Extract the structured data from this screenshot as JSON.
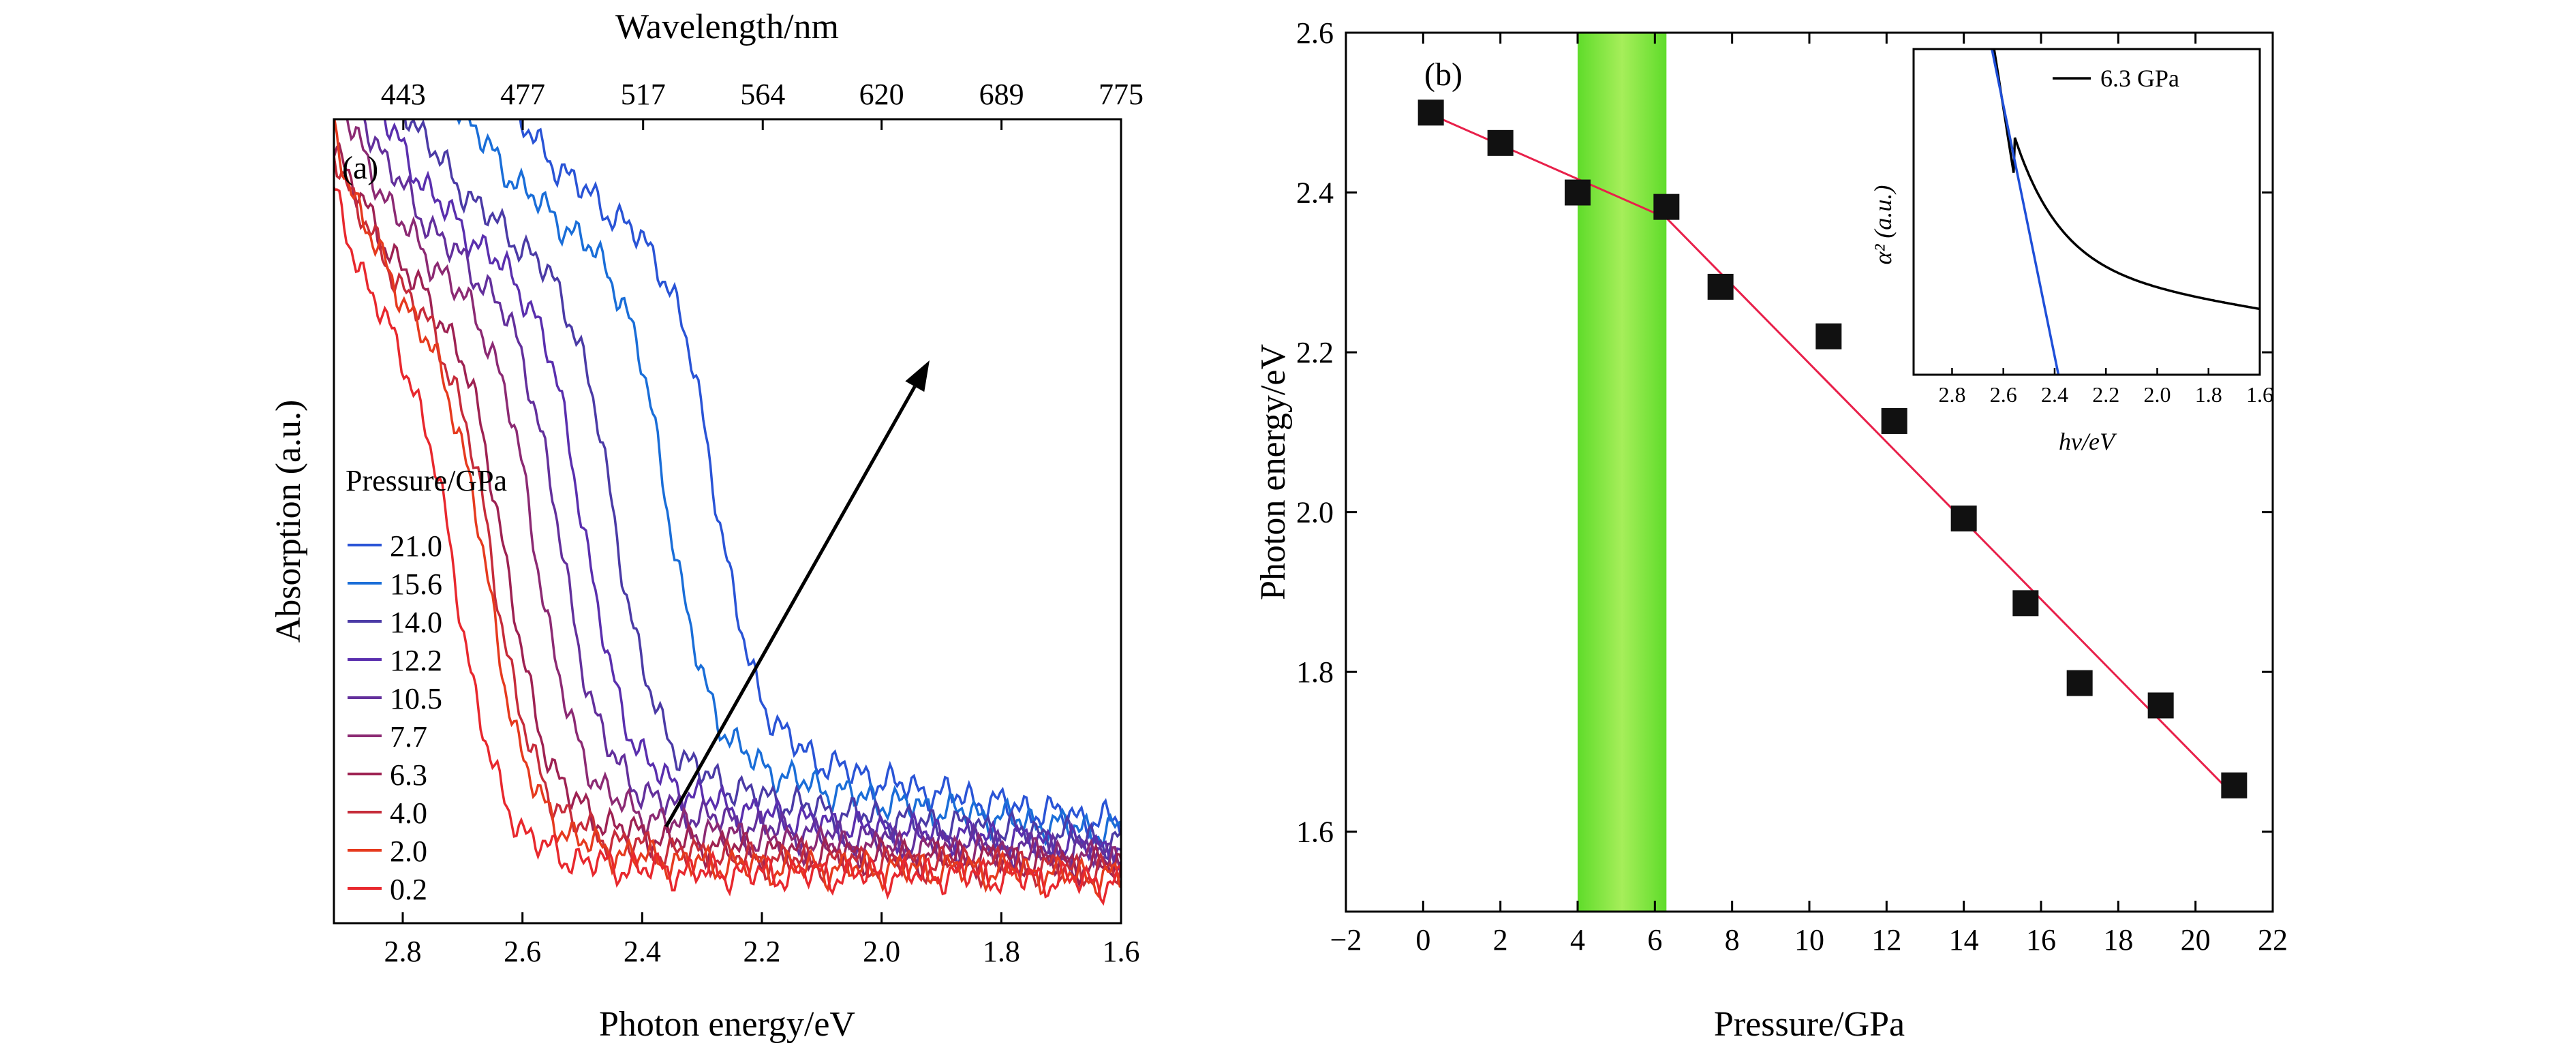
{
  "chart_data": [
    {
      "panel": "(a)",
      "type": "line",
      "xlabel": "Photon energy/eV",
      "ylabel": "Absorption (a.u.)",
      "x2label": "Wavelength/nm",
      "xlim": [
        2.915,
        1.6
      ],
      "x_ticks": [
        "2.8",
        "2.6",
        "2.4",
        "2.2",
        "2.0",
        "1.8",
        "1.6"
      ],
      "x2_ticks": [
        "443",
        "477",
        "517",
        "564",
        "620",
        "689",
        "775"
      ],
      "legend_title": "Pressure/GPa",
      "legend_entries": [
        "21.0",
        "15.6",
        "14.0",
        "12.2",
        "10.5",
        "7.7",
        "6.3",
        "4.0",
        "2.0",
        "0.2"
      ],
      "series_edges_eV": [
        2.28,
        2.36,
        2.45,
        2.5,
        2.54,
        2.58,
        2.63,
        2.65,
        2.66,
        2.71
      ],
      "series_colors": [
        "#2a54d6",
        "#1a6ed8",
        "#4b3ba6",
        "#5a2fae",
        "#63309c",
        "#8c2a73",
        "#9e2252",
        "#c62c3a",
        "#e63a1e",
        "#e8282e"
      ],
      "arrow": {
        "from": [
          2.36,
          0.12
        ],
        "to": [
          1.92,
          0.7
        ]
      }
    },
    {
      "panel": "(b)",
      "type": "scatter",
      "xlabel": "Pressure/GPa",
      "ylabel": "Photon energy/eV",
      "xlim": [
        -2,
        22
      ],
      "ylim": [
        1.5,
        2.6
      ],
      "x_ticks": [
        "−2",
        "0",
        "2",
        "4",
        "6",
        "8",
        "10",
        "12",
        "14",
        "16",
        "18",
        "20",
        "22"
      ],
      "y_ticks": [
        "1.6",
        "1.8",
        "2.0",
        "2.2",
        "2.4",
        "2.6"
      ],
      "points": [
        {
          "x": 0.2,
          "y": 2.5
        },
        {
          "x": 2.0,
          "y": 2.462
        },
        {
          "x": 4.0,
          "y": 2.4
        },
        {
          "x": 6.3,
          "y": 2.382
        },
        {
          "x": 7.7,
          "y": 2.282
        },
        {
          "x": 10.5,
          "y": 2.22
        },
        {
          "x": 12.2,
          "y": 2.114
        },
        {
          "x": 14.0,
          "y": 1.992
        },
        {
          "x": 15.6,
          "y": 1.886
        },
        {
          "x": 17.0,
          "y": 1.786
        },
        {
          "x": 19.1,
          "y": 1.758
        },
        {
          "x": 21.0,
          "y": 1.658
        }
      ],
      "fit_lines": [
        {
          "x": [
            0.0,
            6.3
          ],
          "y": [
            2.502,
            2.368
          ],
          "color": "#e8204a"
        },
        {
          "x": [
            6.3,
            21.0
          ],
          "y": [
            2.368,
            1.645
          ],
          "color": "#e8204a"
        }
      ],
      "shaded_band": {
        "x": [
          4.0,
          6.3
        ],
        "color": "#7ee83a"
      },
      "inset": {
        "xlabel": "hν/eV",
        "ylabel": "α² (a.u.)",
        "legend": "6.3 GPa",
        "xlim": [
          2.95,
          1.6
        ],
        "x_ticks": [
          "2.8",
          "2.6",
          "2.4",
          "2.2",
          "2.0",
          "1.8",
          "1.6"
        ]
      }
    }
  ]
}
